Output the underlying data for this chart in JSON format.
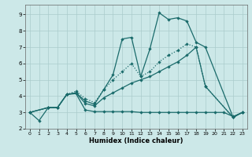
{
  "xlabel": "Humidex (Indice chaleur)",
  "bg_color": "#cce8e8",
  "grid_color": "#aacccc",
  "line_color": "#1a6b6b",
  "xlim": [
    -0.5,
    23.5
  ],
  "ylim": [
    2.0,
    9.6
  ],
  "xticks": [
    0,
    1,
    2,
    3,
    4,
    5,
    6,
    7,
    8,
    9,
    10,
    11,
    12,
    13,
    14,
    15,
    16,
    17,
    18,
    19,
    20,
    21,
    22,
    23
  ],
  "yticks": [
    2,
    3,
    4,
    5,
    6,
    7,
    8,
    9
  ],
  "s1x": [
    0,
    1,
    2,
    3,
    4,
    5,
    6,
    7,
    8,
    9,
    10,
    11,
    12,
    13,
    14,
    15,
    16,
    17,
    18,
    19,
    22,
    23
  ],
  "s1y": [
    3.0,
    2.5,
    3.3,
    3.3,
    4.1,
    4.2,
    3.7,
    3.5,
    4.4,
    5.3,
    7.5,
    7.6,
    5.2,
    6.9,
    9.1,
    8.7,
    8.8,
    8.6,
    7.3,
    7.0,
    2.7,
    3.0
  ],
  "s2x": [
    0,
    2,
    3,
    4,
    5,
    6,
    7,
    8,
    9,
    10,
    11,
    12,
    13,
    14,
    15,
    16,
    17,
    18,
    19,
    22,
    23
  ],
  "s2y": [
    3.0,
    3.3,
    3.3,
    4.1,
    4.3,
    3.85,
    3.6,
    4.4,
    5.0,
    5.5,
    6.0,
    5.2,
    5.5,
    6.1,
    6.5,
    6.8,
    7.2,
    7.0,
    4.6,
    2.7,
    3.0
  ],
  "s3x": [
    0,
    2,
    3,
    4,
    5,
    6,
    7,
    8,
    9,
    10,
    11,
    12,
    13,
    14,
    15,
    16,
    17,
    18,
    19,
    22,
    23
  ],
  "s3y": [
    3.0,
    3.3,
    3.3,
    4.1,
    4.2,
    3.55,
    3.4,
    3.9,
    4.2,
    4.5,
    4.8,
    5.0,
    5.2,
    5.5,
    5.8,
    6.1,
    6.5,
    7.0,
    4.6,
    2.7,
    3.0
  ],
  "s4x": [
    0,
    2,
    3,
    4,
    5,
    6,
    7,
    8,
    9,
    10,
    11,
    12,
    13,
    14,
    15,
    16,
    17,
    18,
    19,
    20,
    21,
    22,
    23
  ],
  "s4y": [
    3.0,
    3.3,
    3.3,
    4.1,
    4.15,
    3.15,
    3.05,
    3.05,
    3.05,
    3.05,
    3.05,
    3.0,
    3.0,
    3.0,
    3.0,
    3.0,
    3.0,
    3.0,
    3.0,
    3.0,
    3.0,
    2.75,
    3.0
  ]
}
